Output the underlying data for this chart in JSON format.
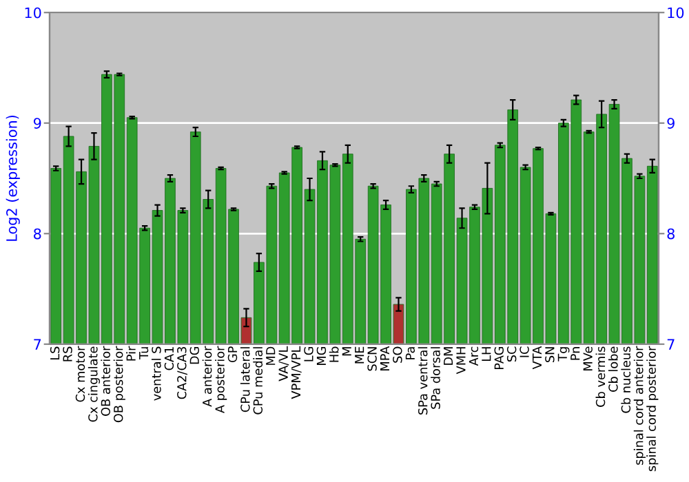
{
  "chart_data": {
    "type": "bar",
    "ylabel": "Log2 (expression)",
    "categories": [
      "LS",
      "RS",
      "Cx motor",
      "Cx cingulate",
      "OB anterior",
      "OB posterior",
      "Pir",
      "Tu",
      "ventral S",
      "CA1",
      "CA2/CA3",
      "DG",
      "A anterior",
      "A posterior",
      "GP",
      "CPu lateral",
      "CPu medial",
      "MD",
      "VA/VL",
      "VPM/VPL",
      "LG",
      "MG",
      "Hb",
      "M",
      "ME",
      "SCN",
      "MPA",
      "SO",
      "Pa",
      "SPa ventral",
      "SPa dorsal",
      "DM",
      "VMH",
      "Arc",
      "LH",
      "PAG",
      "SC",
      "IC",
      "VTA",
      "SN",
      "Tg",
      "Pn",
      "MVe",
      "Cb vermis",
      "Cb lobe",
      "Cb nucleus",
      "spinal cord anterior",
      "spinal cord posterior"
    ],
    "values": [
      8.59,
      8.88,
      8.56,
      8.79,
      9.44,
      9.44,
      9.05,
      8.05,
      8.21,
      8.5,
      8.21,
      8.92,
      8.31,
      8.59,
      8.22,
      7.24,
      7.74,
      8.43,
      8.55,
      8.78,
      8.4,
      8.66,
      8.62,
      8.72,
      7.95,
      8.43,
      8.26,
      7.36,
      8.4,
      8.5,
      8.45,
      8.72,
      8.14,
      8.24,
      8.41,
      8.8,
      9.12,
      8.6,
      8.77,
      8.18,
      9.0,
      9.21,
      8.92,
      9.08,
      9.17,
      8.68,
      8.52,
      8.61
    ],
    "errors": [
      0.02,
      0.09,
      0.11,
      0.12,
      0.03,
      0.01,
      0.01,
      0.02,
      0.05,
      0.03,
      0.02,
      0.04,
      0.08,
      0.01,
      0.01,
      0.08,
      0.08,
      0.02,
      0.01,
      0.01,
      0.1,
      0.08,
      0.01,
      0.08,
      0.02,
      0.02,
      0.04,
      0.06,
      0.03,
      0.03,
      0.02,
      0.08,
      0.09,
      0.02,
      0.23,
      0.02,
      0.09,
      0.02,
      0.01,
      0.01,
      0.03,
      0.04,
      0.01,
      0.12,
      0.04,
      0.04,
      0.02,
      0.06
    ],
    "colors": [
      "#2e9e2e",
      "#2e9e2e",
      "#2e9e2e",
      "#2e9e2e",
      "#2e9e2e",
      "#2e9e2e",
      "#2e9e2e",
      "#2e9e2e",
      "#2e9e2e",
      "#2e9e2e",
      "#2e9e2e",
      "#2e9e2e",
      "#2e9e2e",
      "#2e9e2e",
      "#2e9e2e",
      "#b03030",
      "#2e9e2e",
      "#2e9e2e",
      "#2e9e2e",
      "#2e9e2e",
      "#2e9e2e",
      "#2e9e2e",
      "#2e9e2e",
      "#2e9e2e",
      "#2e9e2e",
      "#2e9e2e",
      "#2e9e2e",
      "#b03030",
      "#2e9e2e",
      "#2e9e2e",
      "#2e9e2e",
      "#2e9e2e",
      "#2e9e2e",
      "#2e9e2e",
      "#2e9e2e",
      "#2e9e2e",
      "#2e9e2e",
      "#2e9e2e",
      "#2e9e2e",
      "#2e9e2e",
      "#2e9e2e",
      "#2e9e2e",
      "#2e9e2e",
      "#2e9e2e",
      "#2e9e2e",
      "#2e9e2e",
      "#2e9e2e",
      "#2e9e2e"
    ],
    "ylim": [
      7,
      10
    ],
    "yticks": [
      7,
      8,
      9,
      10
    ],
    "y2lim": [
      7,
      10
    ],
    "y2ticks": [
      7,
      8,
      9,
      10
    ],
    "grid": "y",
    "legend": false
  }
}
